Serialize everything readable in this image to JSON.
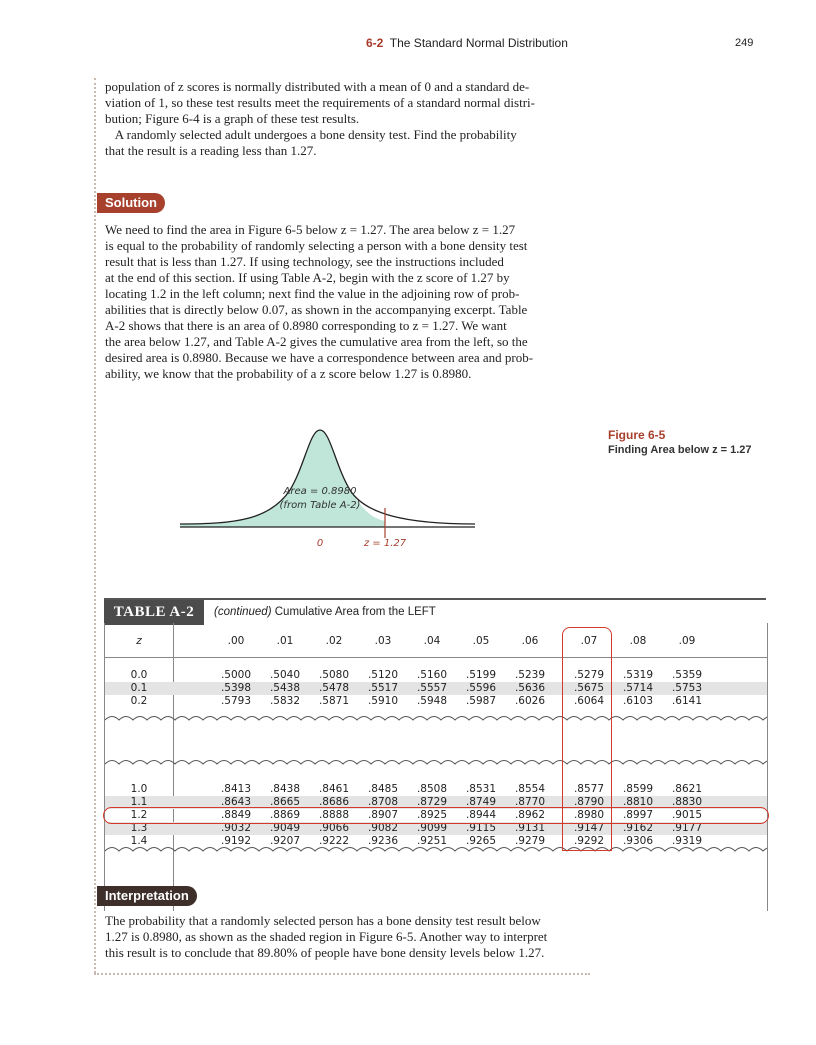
{
  "header": {
    "section_num": "6-2",
    "section_title": "The Standard Normal Distribution",
    "page_number": "249"
  },
  "intro": [
    "population of z scores is normally distributed with a mean of 0 and a standard de-",
    "viation of 1, so these test results meet the requirements of a standard normal distri-",
    "bution; Figure 6-4 is a graph of these test results.",
    "A randomly selected adult undergoes a bone density test. Find the probability",
    "that the result is a reading less than 1.27."
  ],
  "solution_label": "Solution",
  "solution": [
    "We need to find the area in Figure 6-5 below z = 1.27. The area below z = 1.27",
    "is equal to the probability of randomly selecting a person with a bone density test",
    "result that is less than 1.27. If using technology, see the instructions included",
    "at the end of this section. If using Table A-2, begin with the z score of 1.27 by",
    "locating 1.2 in the left column; next find the value in the adjoining row of prob-",
    "abilities that is directly below 0.07, as shown in the accompanying excerpt. Table",
    "A-2 shows that there is an area of 0.8980 corresponding to z = 1.27. We want",
    "the area below 1.27, and Table A-2 gives the cumulative area from the left, so the",
    "desired area is 0.8980. Because we have a correspondence between area and prob-",
    "ability, we know that the probability of a z score below 1.27 is 0.8980."
  ],
  "figure": {
    "number": "Figure 6-5",
    "title": "Finding Area below z = 1.27",
    "area_line1": "Area = 0.8980",
    "area_line2": "(from Table A-2)",
    "x0_label": "0",
    "x1_label": "z = 1.27"
  },
  "table": {
    "label": "TABLE A-2",
    "caption_em": "(continued)",
    "caption_rest": " Cumulative Area from the LEFT",
    "z_header": "z",
    "columns": [
      ".00",
      ".01",
      ".02",
      ".03",
      ".04",
      ".05",
      ".06",
      ".07",
      ".08",
      ".09"
    ],
    "block1": [
      {
        "z": "0.0",
        "values": [
          ".5000",
          ".5040",
          ".5080",
          ".5120",
          ".5160",
          ".5199",
          ".5239",
          ".5279",
          ".5319",
          ".5359"
        ]
      },
      {
        "z": "0.1",
        "values": [
          ".5398",
          ".5438",
          ".5478",
          ".5517",
          ".5557",
          ".5596",
          ".5636",
          ".5675",
          ".5714",
          ".5753"
        ]
      },
      {
        "z": "0.2",
        "values": [
          ".5793",
          ".5832",
          ".5871",
          ".5910",
          ".5948",
          ".5987",
          ".6026",
          ".6064",
          ".6103",
          ".6141"
        ]
      }
    ],
    "block2": [
      {
        "z": "1.0",
        "values": [
          ".8413",
          ".8438",
          ".8461",
          ".8485",
          ".8508",
          ".8531",
          ".8554",
          ".8577",
          ".8599",
          ".8621"
        ]
      },
      {
        "z": "1.1",
        "values": [
          ".8643",
          ".8665",
          ".8686",
          ".8708",
          ".8729",
          ".8749",
          ".8770",
          ".8790",
          ".8810",
          ".8830"
        ]
      },
      {
        "z": "1.2",
        "values": [
          ".8849",
          ".8869",
          ".8888",
          ".8907",
          ".8925",
          ".8944",
          ".8962",
          ".8980",
          ".8997",
          ".9015"
        ]
      },
      {
        "z": "1.3",
        "values": [
          ".9032",
          ".9049",
          ".9066",
          ".9082",
          ".9099",
          ".9115",
          ".9131",
          ".9147",
          ".9162",
          ".9177"
        ]
      },
      {
        "z": "1.4",
        "values": [
          ".9192",
          ".9207",
          ".9222",
          ".9236",
          ".9251",
          ".9265",
          ".9279",
          ".9292",
          ".9306",
          ".9319"
        ]
      }
    ]
  },
  "interpretation_label": "Interpretation",
  "interpretation": [
    "The probability that a randomly selected person has a bone density test result below",
    "1.27 is 0.8980, as shown as the shaded region in Figure 6-5. Another way to interpret",
    "this result is to conclude that 89.80% of people have bone density levels below 1.27."
  ],
  "colors": {
    "accent": "#a8402e",
    "curve_fill": "#bfe6d8",
    "highlight": "#d43a2a"
  }
}
